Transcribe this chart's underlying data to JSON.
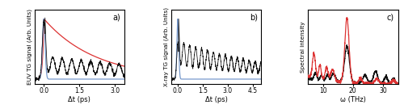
{
  "panel_a": {
    "xlabel": "Δt (ps)",
    "ylabel": "EUV TG signal (Arb. Units)",
    "label": "a)",
    "xlim": [
      -0.4,
      3.4
    ],
    "ylim": [
      -0.08,
      1.15
    ],
    "xticks": [
      0.0,
      1.5,
      3.0
    ]
  },
  "panel_b": {
    "xlabel": "Δt (ps)",
    "ylabel": "X-ray TG signal (Arb. Units)",
    "label": "b)",
    "xlim": [
      -0.4,
      5.0
    ],
    "ylim": [
      -0.08,
      1.15
    ],
    "xticks": [
      0.0,
      1.5,
      3.0,
      4.5
    ]
  },
  "panel_c": {
    "xlabel": "ω (THz)",
    "ylabel": "Spectral intensity",
    "label": "c)",
    "xlim": [
      5,
      35
    ],
    "ylim": [
      0,
      1.12
    ],
    "xticks": [
      10,
      20,
      30
    ]
  },
  "colors": {
    "black_data": "#111111",
    "blue_fit": "#7799cc",
    "red_fit": "#dd3333",
    "red_line": "#dd3333",
    "black_line": "#111111"
  }
}
